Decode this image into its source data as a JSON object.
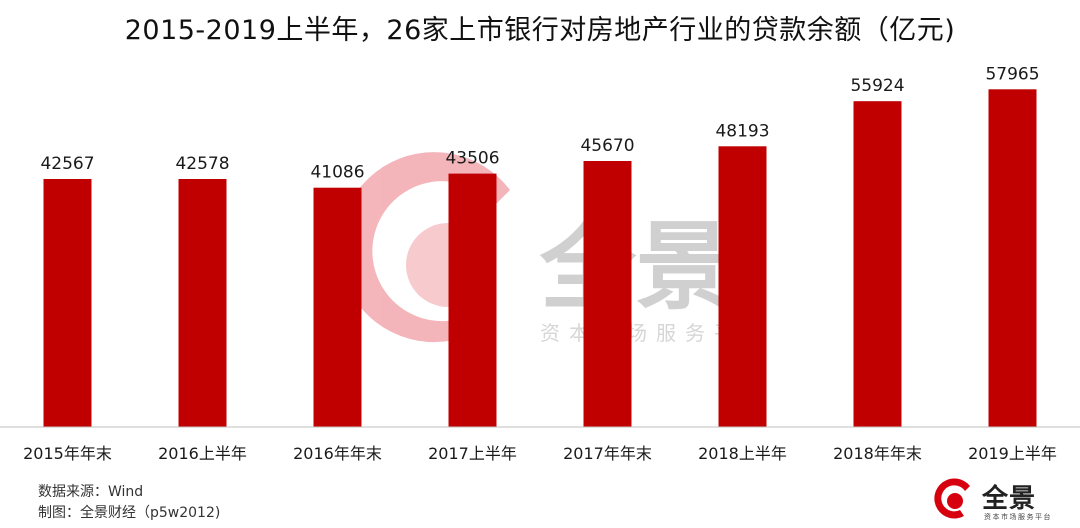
{
  "chart_data": {
    "type": "bar",
    "title": "2015-2019上半年，26家上市银行对房地产行业的贷款余额（亿元)",
    "categories": [
      "2015年年末",
      "2016上半年",
      "2016年年末",
      "2017上半年",
      "2017年年末",
      "2018上半年",
      "2018年年末",
      "2019上半年"
    ],
    "series": [
      {
        "values": [
          42567,
          42578,
          41086,
          43506,
          45670,
          48193,
          55924,
          57965
        ]
      }
    ],
    "ylim": [
      0,
      63000
    ],
    "grid": false,
    "bar_color": "#c00000",
    "data_labels": true
  },
  "footer": {
    "source": "数据来源：Wind",
    "maker": "制图：全景财经（p5w2012)"
  },
  "watermark": {
    "brand": "全景",
    "tagline": "资本市场服务平台"
  },
  "logo": {
    "brand": "全景",
    "tagline": "资本市场服务平台"
  },
  "colors": {
    "bar": "#c00000",
    "logo_red": "#d7000f",
    "watermark_red": "#f2a9ae",
    "watermark_gray": "#c8c8c8"
  }
}
